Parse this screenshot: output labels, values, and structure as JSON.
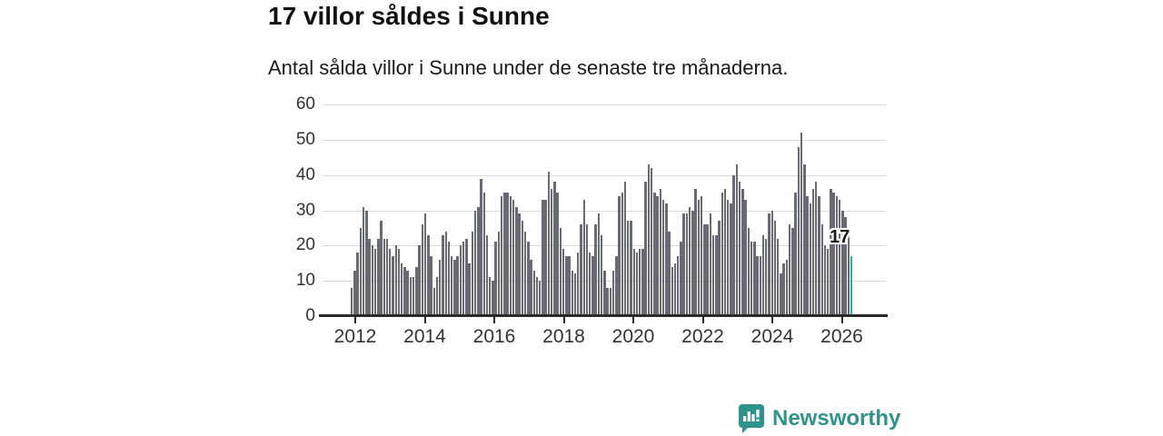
{
  "header": {
    "title": "17 villor såldes i Sunne",
    "subtitle": "Antal sålda villor i Sunne under de senaste tre månaderna."
  },
  "chart_data": {
    "type": "bar",
    "title": "17 villor såldes i Sunne",
    "subtitle": "Antal sålda villor i Sunne under de senaste tre månaderna.",
    "unit": "villor per 3-månadersperiod",
    "x_start": "2012-01",
    "x_end": "2026-03",
    "x_tick_labels": [
      "2012",
      "2014",
      "2016",
      "2018",
      "2020",
      "2022",
      "2024",
      "2026"
    ],
    "y_tick_labels": [
      "0",
      "10",
      "20",
      "30",
      "40",
      "50",
      "60"
    ],
    "ylim": [
      0,
      60
    ],
    "grid": true,
    "values": [
      8,
      13,
      18,
      25,
      31,
      30,
      22,
      20,
      19,
      22,
      27,
      22,
      22,
      19,
      17,
      20,
      19,
      15,
      14,
      13,
      11,
      11,
      14,
      20,
      26,
      29,
      23,
      17,
      8,
      11,
      16,
      23,
      24,
      21,
      17,
      16,
      17,
      20,
      21,
      22,
      15,
      24,
      30,
      31,
      39,
      35,
      23,
      11,
      10,
      21,
      24,
      34,
      35,
      35,
      34,
      33,
      31,
      29,
      27,
      24,
      21,
      16,
      13,
      11,
      10,
      33,
      33,
      41,
      36,
      38,
      35,
      25,
      19,
      17,
      17,
      13,
      12,
      18,
      26,
      33,
      26,
      18,
      17,
      26,
      29,
      23,
      13,
      8,
      8,
      13,
      17,
      34,
      35,
      38,
      27,
      27,
      19,
      18,
      19,
      19,
      38,
      43,
      42,
      35,
      34,
      36,
      33,
      32,
      24,
      14,
      15,
      17,
      21,
      29,
      29,
      31,
      30,
      36,
      33,
      34,
      26,
      26,
      29,
      23,
      23,
      27,
      35,
      36,
      33,
      32,
      40,
      43,
      38,
      36,
      33,
      25,
      21,
      21,
      17,
      17,
      23,
      22,
      29,
      30,
      27,
      22,
      12,
      15,
      16,
      26,
      25,
      35,
      48,
      52,
      43,
      34,
      32,
      36,
      38,
      34,
      26,
      20,
      19,
      36,
      35,
      34,
      33,
      30,
      28,
      24,
      17
    ],
    "highlight_last": true,
    "highlight_value": 17,
    "annotation": "17",
    "bar_color": "#6a6a74",
    "highlight_color": "#29b3a7",
    "axis_color": "#2b2b2b",
    "grid_color": "#dadada"
  },
  "branding": {
    "logo_text": "Newsworthy",
    "logo_color": "#2e948a"
  }
}
